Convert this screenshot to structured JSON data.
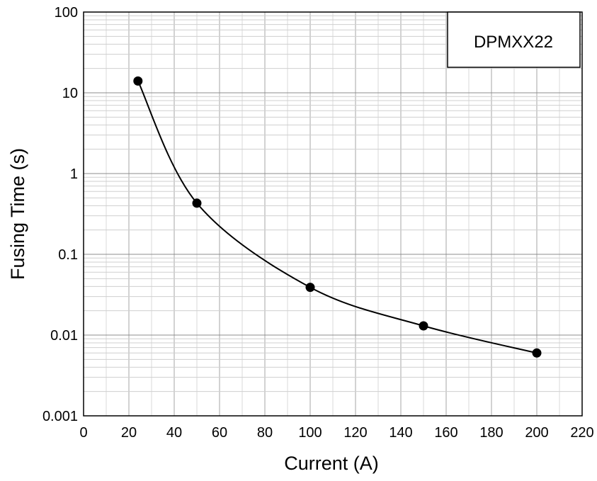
{
  "chart_data": {
    "type": "line",
    "title": "",
    "xlabel": "Current (A)",
    "ylabel": "Fusing Time (s)",
    "xlim": [
      0,
      220
    ],
    "ylim": [
      0.001,
      100
    ],
    "y_scale": "log",
    "x_ticks": [
      0,
      20,
      40,
      60,
      80,
      100,
      120,
      140,
      160,
      180,
      200,
      220
    ],
    "x_tick_labels": [
      "0",
      "20",
      "40",
      "60",
      "80",
      "100",
      "120",
      "140",
      "160",
      "180",
      "200",
      "220"
    ],
    "y_ticks": [
      0.001,
      0.01,
      0.1,
      1,
      10,
      100
    ],
    "y_tick_labels": [
      "0.001",
      "0.01",
      "0.1",
      "1",
      "10",
      "100"
    ],
    "grid": true,
    "legend_box": "DPMXX22",
    "legend_placement": "top-right",
    "series": [
      {
        "x": [
          24,
          50,
          100,
          150,
          200
        ],
        "y": [
          14,
          0.43,
          0.039,
          0.013,
          0.006
        ],
        "color": "#000000",
        "marker": "circle",
        "line": "smooth"
      }
    ]
  }
}
